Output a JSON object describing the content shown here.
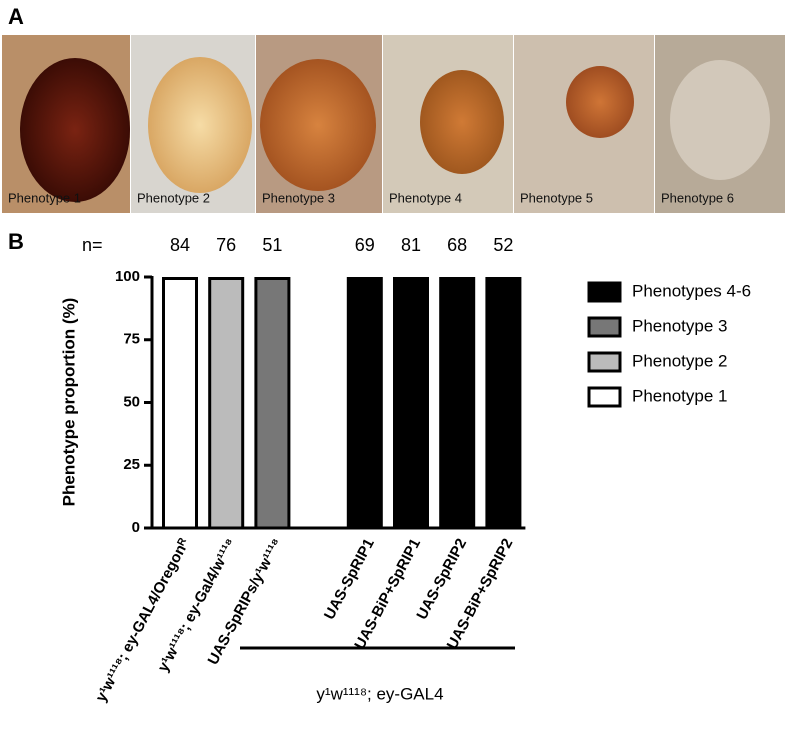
{
  "panel_a": {
    "label": "A",
    "images": [
      "Phenotype 1",
      "Phenotype 2",
      "Phenotype 3",
      "Phenotype 4",
      "Phenotype 5",
      "Phenotype 6"
    ]
  },
  "chart_data": {
    "type": "bar",
    "stacked": true,
    "panel_label": "B",
    "ylabel": "Phenotype proportion (%)",
    "categories": [
      "y¹w¹¹¹⁸; ey-GAL4/Oregonᴿ",
      "y¹w¹¹¹⁸; ey-Gal4/w¹¹¹⁸",
      "UAS-SpRIPs/y¹w¹¹¹⁸",
      null,
      "UAS-SpRIP1",
      "UAS-BiP+SpRIP1",
      "UAS-SpRIP2",
      "UAS-BiP+SpRIP2"
    ],
    "series": [
      {
        "name": "Phenotypes 4-6",
        "color": "#000000",
        "values": [
          0,
          0,
          0,
          null,
          100,
          100,
          100,
          100
        ]
      },
      {
        "name": "Phenotype 3",
        "color": "#777777",
        "values": [
          0,
          0,
          100,
          null,
          0,
          0,
          0,
          0
        ]
      },
      {
        "name": "Phenotype 2",
        "color": "#bbbbbb",
        "values": [
          0,
          100,
          0,
          null,
          0,
          0,
          0,
          0
        ]
      },
      {
        "name": "Phenotype 1",
        "color": "#ffffff",
        "values": [
          100,
          0,
          0,
          null,
          0,
          0,
          0,
          0
        ]
      }
    ],
    "n_label": "n=",
    "n": [
      84,
      76,
      51,
      null,
      69,
      81,
      68,
      52
    ],
    "group_label": "y¹w¹¹¹⁸; ey-GAL4",
    "ylim": [
      0,
      100
    ],
    "yticks": [
      0,
      25,
      50,
      75,
      100
    ],
    "legend": "right"
  }
}
